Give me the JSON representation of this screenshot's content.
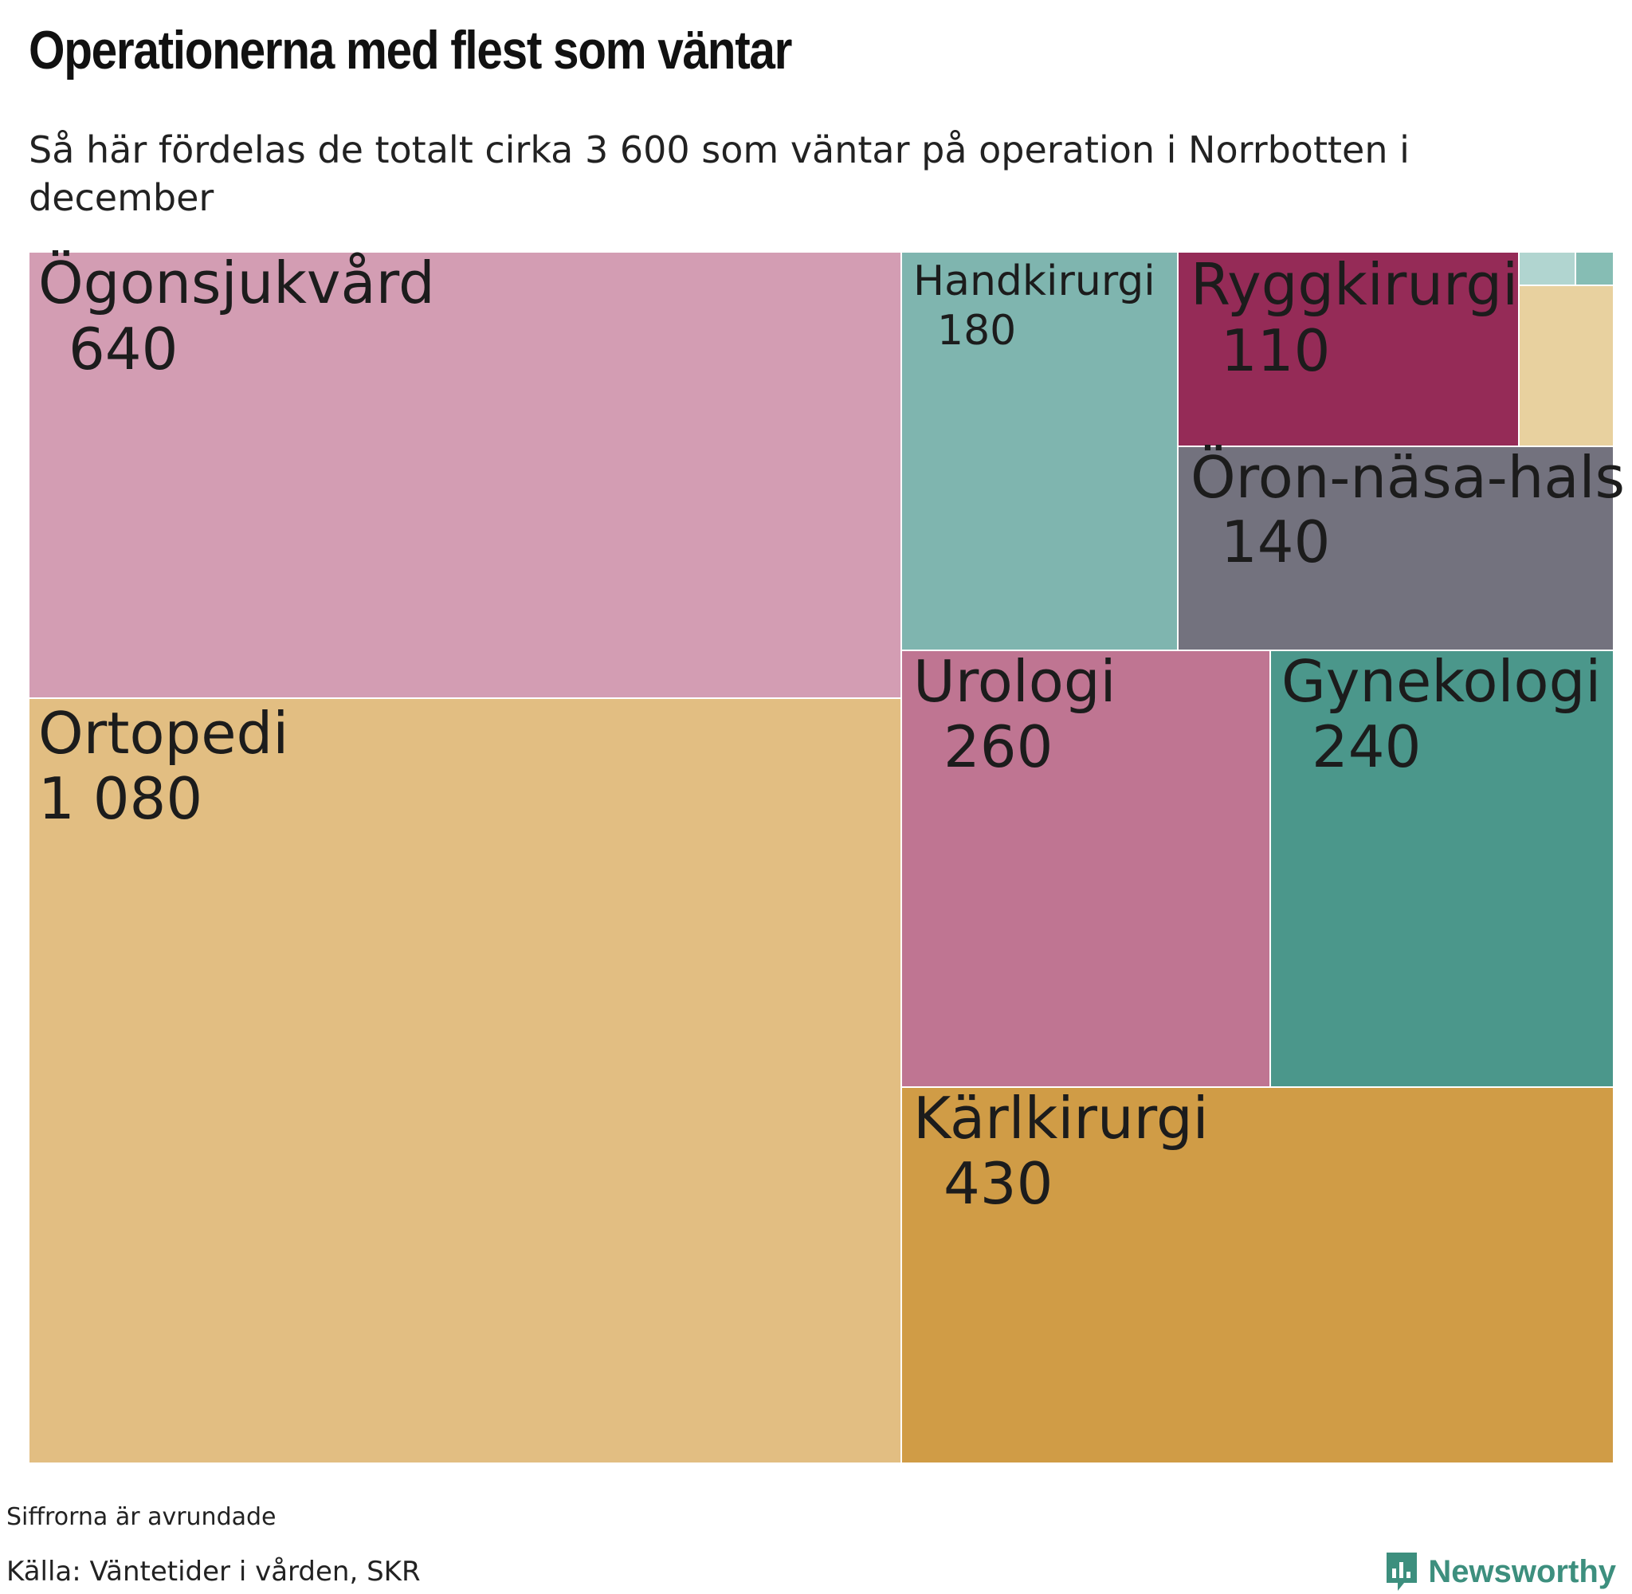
{
  "title": "Operationerna med flest som väntar",
  "subtitle": "Så här fördelas de totalt cirka 3 600 som väntar på operation i Norrbotten i december",
  "footer": {
    "note": "Siffrorna är avrundade",
    "source": "Källa: Väntetider i vården, SKR"
  },
  "brand": {
    "name": "Newsworthy",
    "icon": "newsworthy-logo-icon",
    "color": "#3d8f7e"
  },
  "chart_data": {
    "type": "treemap",
    "title": "Operationerna med flest som väntar",
    "subtitle": "Så här fördelas de totalt cirka 3 600 som väntar på operation i Norrbotten i december",
    "total_label": "3 600",
    "items": [
      {
        "label": "Ögonsjukvård",
        "value": 640,
        "value_label": "640",
        "color": "#d39db3"
      },
      {
        "label": "Ortopedi",
        "value": 1080,
        "value_label": "1 080",
        "color": "#e2be82"
      },
      {
        "label": "Handkirurgi",
        "value": 180,
        "value_label": "180",
        "color": "#7fb5af"
      },
      {
        "label": "Ryggkirurgi",
        "value": 110,
        "value_label": "110",
        "color": "#952b57"
      },
      {
        "label": "Öron-näsa-hals",
        "value": 140,
        "value_label": "140",
        "color": "#73727e"
      },
      {
        "label": "Urologi",
        "value": 260,
        "value_label": "260",
        "color": "#bf7592"
      },
      {
        "label": "Gynekologi",
        "value": 240,
        "value_label": "240",
        "color": "#4b978b"
      },
      {
        "label": "Kärlkirurgi",
        "value": 430,
        "value_label": "430",
        "color": "#d09c46"
      },
      {
        "label": "",
        "value": 60,
        "value_label": "",
        "color": "#e8d19f"
      },
      {
        "label": "",
        "value": 10,
        "value_label": "",
        "color": "#b1d5d0"
      },
      {
        "label": "",
        "value": 6,
        "value_label": "",
        "color": "#86bdb4"
      }
    ]
  }
}
